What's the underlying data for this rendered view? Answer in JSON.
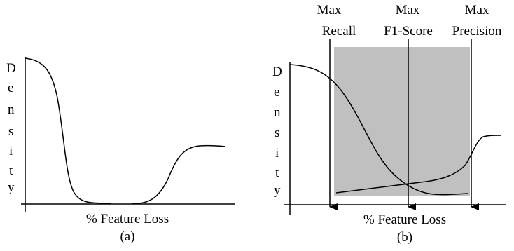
{
  "panel_a": {
    "y_axis_letters": [
      "D",
      "e",
      "n",
      "s",
      "i",
      "t",
      "y"
    ],
    "x_axis_label": "% Feature Loss",
    "caption": "(a)"
  },
  "panel_b": {
    "y_axis_letters": [
      "D",
      "e",
      "n",
      "s",
      "i",
      "t",
      "y"
    ],
    "x_axis_label": "% Feature Loss",
    "caption": "(b)",
    "markers": [
      {
        "line1": "Max",
        "line2": "Recall"
      },
      {
        "line1": "Max",
        "line2": "F1-Score"
      },
      {
        "line1": "Max",
        "line2": "Precision"
      }
    ]
  },
  "colors": {
    "ink": "#000000",
    "shaded_region": "#c0c0c0",
    "background": "#ffffff"
  }
}
